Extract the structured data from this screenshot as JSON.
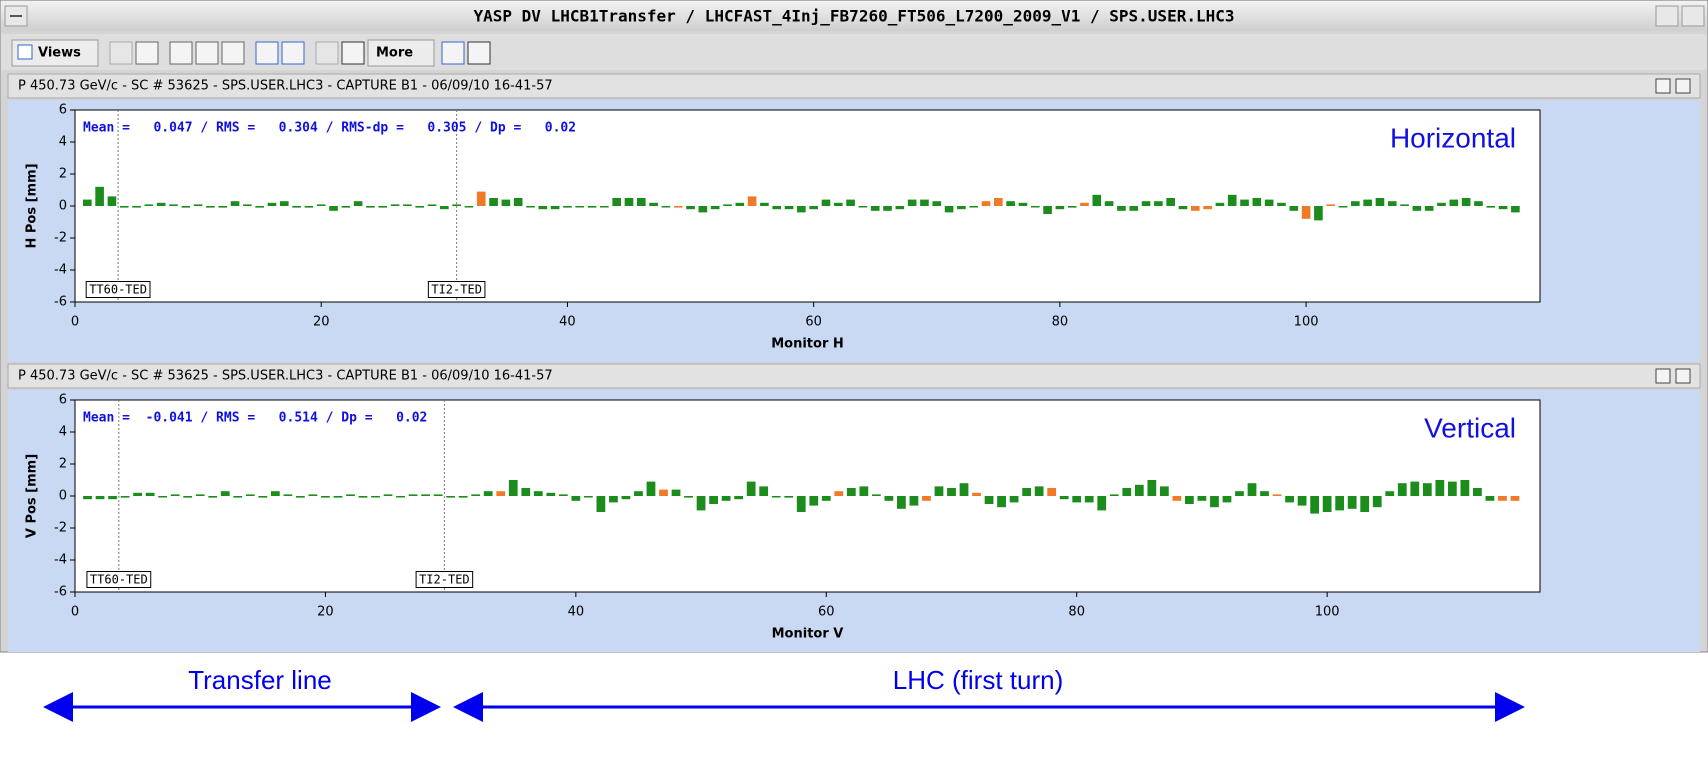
{
  "window": {
    "title": "YASP DV LHCB1Transfer / LHCFAST_4Inj_FB7260_FT506_L7200_2009_V1 / SPS.USER.LHC3"
  },
  "toolbar": {
    "views": "Views",
    "more": "More"
  },
  "chart_data": [
    {
      "type": "bar",
      "header": "P 450.73 GeV/c - SC # 53625 - SPS.USER.LHC3 - CAPTURE B1 - 06/09/10 16-41-57",
      "stats": "Mean =   0.047 / RMS =   0.304 / RMS-dp =   0.305 / Dp =   0.02",
      "plane_label": "Horizontal",
      "xlabel": "Monitor H",
      "ylabel": "H Pos [mm]",
      "xlim": [
        0,
        119
      ],
      "ylim": [
        -6,
        6
      ],
      "xticks": [
        0,
        20,
        40,
        60,
        80,
        100
      ],
      "yticks": [
        -6,
        -4,
        -2,
        0,
        2,
        4,
        6
      ],
      "markers": [
        {
          "label": "TT60-TED",
          "x": 3.5
        },
        {
          "label": "TI2-TED",
          "x": 31
        }
      ],
      "x": [
        1,
        2,
        3,
        4,
        5,
        6,
        7,
        8,
        9,
        10,
        11,
        12,
        13,
        14,
        15,
        16,
        17,
        18,
        19,
        20,
        21,
        22,
        23,
        24,
        25,
        26,
        27,
        28,
        29,
        30,
        31,
        32,
        33,
        34,
        35,
        36,
        37,
        38,
        39,
        40,
        41,
        42,
        43,
        44,
        45,
        46,
        47,
        48,
        49,
        50,
        51,
        52,
        53,
        54,
        55,
        56,
        57,
        58,
        59,
        60,
        61,
        62,
        63,
        64,
        65,
        66,
        67,
        68,
        69,
        70,
        71,
        72,
        73,
        74,
        75,
        76,
        77,
        78,
        79,
        80,
        81,
        82,
        83,
        84,
        85,
        86,
        87,
        88,
        89,
        90,
        91,
        92,
        93,
        94,
        95,
        96,
        97,
        98,
        99,
        100,
        101,
        102,
        103,
        104,
        105,
        106,
        107,
        108,
        109,
        110,
        111,
        112,
        113,
        114,
        115,
        116,
        117
      ],
      "values": [
        0.4,
        1.2,
        0.6,
        -0.1,
        -0.1,
        0.1,
        0.2,
        0.1,
        -0.1,
        0.1,
        -0.1,
        -0.1,
        0.3,
        0.1,
        -0.1,
        0.2,
        0.3,
        -0.1,
        -0.1,
        0.1,
        -0.3,
        -0.1,
        0.3,
        -0.1,
        -0.1,
        0.1,
        0.1,
        -0.1,
        0.1,
        -0.2,
        0.1,
        0.0,
        0.9,
        0.5,
        0.4,
        0.5,
        0.0,
        -0.2,
        -0.2,
        -0.1,
        0.0,
        -0.1,
        0.0,
        0.5,
        0.5,
        0.5,
        0.2,
        0.0,
        -0.1,
        -0.2,
        -0.4,
        -0.2,
        0.1,
        0.2,
        0.6,
        0.2,
        -0.2,
        -0.2,
        -0.4,
        -0.2,
        0.4,
        0.2,
        0.4,
        0.0,
        -0.3,
        -0.3,
        -0.2,
        0.4,
        0.4,
        0.3,
        -0.4,
        -0.2,
        0.0,
        0.3,
        0.5,
        0.3,
        0.2,
        0.0,
        -0.5,
        -0.2,
        -0.1,
        0.2,
        0.7,
        0.3,
        -0.3,
        -0.3,
        0.3,
        0.3,
        0.5,
        -0.2,
        -0.3,
        -0.2,
        0.2,
        0.7,
        0.4,
        0.5,
        0.4,
        0.2,
        -0.3,
        -0.8,
        -0.9,
        0.1,
        0.0,
        0.3,
        0.4,
        0.5,
        0.3,
        0.1,
        -0.3,
        -0.3,
        0.2,
        0.4,
        0.5,
        0.3,
        -0.1,
        -0.2,
        -0.4
      ],
      "colors": [
        "#1c8c1c",
        "#1c8c1c",
        "#1c8c1c",
        "#1c8c1c",
        "#1c8c1c",
        "#1c8c1c",
        "#1c8c1c",
        "#1c8c1c",
        "#1c8c1c",
        "#1c8c1c",
        "#1c8c1c",
        "#1c8c1c",
        "#1c8c1c",
        "#1c8c1c",
        "#1c8c1c",
        "#1c8c1c",
        "#1c8c1c",
        "#1c8c1c",
        "#1c8c1c",
        "#1c8c1c",
        "#1c8c1c",
        "#1c8c1c",
        "#1c8c1c",
        "#1c8c1c",
        "#1c8c1c",
        "#1c8c1c",
        "#1c8c1c",
        "#1c8c1c",
        "#1c8c1c",
        "#1c8c1c",
        "#1c8c1c",
        "#1c8c1c",
        "#f07a28",
        "#1c8c1c",
        "#1c8c1c",
        "#1c8c1c",
        "#1c8c1c",
        "#1c8c1c",
        "#1c8c1c",
        "#1c8c1c",
        "#1c8c1c",
        "#1c8c1c",
        "#1c8c1c",
        "#1c8c1c",
        "#1c8c1c",
        "#1c8c1c",
        "#1c8c1c",
        "#1c8c1c",
        "#f07a28",
        "#1c8c1c",
        "#1c8c1c",
        "#1c8c1c",
        "#1c8c1c",
        "#1c8c1c",
        "#f07a28",
        "#1c8c1c",
        "#1c8c1c",
        "#1c8c1c",
        "#1c8c1c",
        "#1c8c1c",
        "#1c8c1c",
        "#1c8c1c",
        "#1c8c1c",
        "#1c8c1c",
        "#1c8c1c",
        "#1c8c1c",
        "#1c8c1c",
        "#1c8c1c",
        "#1c8c1c",
        "#1c8c1c",
        "#1c8c1c",
        "#1c8c1c",
        "#1c8c1c",
        "#f07a28",
        "#f07a28",
        "#1c8c1c",
        "#1c8c1c",
        "#1c8c1c",
        "#1c8c1c",
        "#1c8c1c",
        "#1c8c1c",
        "#f07a28",
        "#1c8c1c",
        "#1c8c1c",
        "#1c8c1c",
        "#1c8c1c",
        "#1c8c1c",
        "#1c8c1c",
        "#1c8c1c",
        "#1c8c1c",
        "#f07a28",
        "#f07a28",
        "#1c8c1c",
        "#1c8c1c",
        "#1c8c1c",
        "#1c8c1c",
        "#1c8c1c",
        "#1c8c1c",
        "#1c8c1c",
        "#f07a28",
        "#1c8c1c",
        "#f07a28",
        "#1c8c1c",
        "#1c8c1c",
        "#1c8c1c",
        "#1c8c1c",
        "#1c8c1c",
        "#1c8c1c",
        "#1c8c1c",
        "#1c8c1c",
        "#1c8c1c",
        "#1c8c1c",
        "#1c8c1c",
        "#1c8c1c",
        "#1c8c1c",
        "#1c8c1c",
        "#1c8c1c"
      ]
    },
    {
      "type": "bar",
      "header": "P 450.73 GeV/c - SC # 53625 - SPS.USER.LHC3 - CAPTURE B1 - 06/09/10 16-41-57",
      "stats": "Mean =  -0.041 / RMS =   0.514 / Dp =   0.02",
      "plane_label": "Vertical",
      "xlabel": "Monitor V",
      "ylabel": "V Pos [mm]",
      "xlim": [
        0,
        117
      ],
      "ylim": [
        -6,
        6
      ],
      "xticks": [
        0,
        20,
        40,
        60,
        80,
        100
      ],
      "yticks": [
        -6,
        -4,
        -2,
        0,
        2,
        4,
        6
      ],
      "markers": [
        {
          "label": "TT60-TED",
          "x": 3.5
        },
        {
          "label": "TI2-TED",
          "x": 29.5
        }
      ],
      "x": [
        1,
        2,
        3,
        4,
        5,
        6,
        7,
        8,
        9,
        10,
        11,
        12,
        13,
        14,
        15,
        16,
        17,
        18,
        19,
        20,
        21,
        22,
        23,
        24,
        25,
        26,
        27,
        28,
        29,
        30,
        31,
        32,
        33,
        34,
        35,
        36,
        37,
        38,
        39,
        40,
        41,
        42,
        43,
        44,
        45,
        46,
        47,
        48,
        49,
        50,
        51,
        52,
        53,
        54,
        55,
        56,
        57,
        58,
        59,
        60,
        61,
        62,
        63,
        64,
        65,
        66,
        67,
        68,
        69,
        70,
        71,
        72,
        73,
        74,
        75,
        76,
        77,
        78,
        79,
        80,
        81,
        82,
        83,
        84,
        85,
        86,
        87,
        88,
        89,
        90,
        91,
        92,
        93,
        94,
        95,
        96,
        97,
        98,
        99,
        100,
        101,
        102,
        103,
        104,
        105,
        106,
        107,
        108,
        109,
        110,
        111,
        112,
        113,
        114,
        115
      ],
      "values": [
        -0.2,
        -0.2,
        -0.2,
        -0.1,
        0.2,
        0.2,
        0.0,
        0.1,
        -0.1,
        0.1,
        -0.1,
        0.3,
        -0.1,
        0.1,
        -0.1,
        0.3,
        0.1,
        -0.1,
        0.1,
        -0.1,
        -0.1,
        0.1,
        -0.1,
        0.0,
        0.1,
        0.0,
        0.1,
        0.1,
        0.1,
        -0.1,
        -0.1,
        0.1,
        0.3,
        0.3,
        1.0,
        0.5,
        0.3,
        0.2,
        0.1,
        -0.3,
        0.0,
        -1.0,
        -0.4,
        -0.2,
        0.3,
        0.9,
        0.4,
        0.4,
        -0.1,
        -0.9,
        -0.5,
        -0.3,
        -0.2,
        0.9,
        0.6,
        0.0,
        -0.1,
        -1.0,
        -0.6,
        -0.3,
        0.3,
        0.5,
        0.6,
        0.1,
        -0.3,
        -0.8,
        -0.6,
        -0.3,
        0.6,
        0.5,
        0.8,
        0.2,
        -0.5,
        -0.7,
        -0.4,
        0.5,
        0.6,
        0.5,
        -0.2,
        -0.4,
        -0.4,
        -0.9,
        0.1,
        0.5,
        0.7,
        1.0,
        0.6,
        -0.3,
        -0.5,
        -0.3,
        -0.7,
        -0.4,
        0.3,
        0.8,
        0.3,
        0.1,
        -0.4,
        -0.6,
        -1.1,
        -1.0,
        -0.9,
        -0.8,
        -1.0,
        -0.7,
        0.3,
        0.8,
        0.9,
        0.8,
        1.0,
        0.9,
        1.0,
        0.5,
        -0.3,
        -0.3,
        -0.3
      ],
      "colors": [
        "#1c8c1c",
        "#1c8c1c",
        "#1c8c1c",
        "#1c8c1c",
        "#1c8c1c",
        "#1c8c1c",
        "#1c8c1c",
        "#1c8c1c",
        "#1c8c1c",
        "#1c8c1c",
        "#1c8c1c",
        "#1c8c1c",
        "#1c8c1c",
        "#1c8c1c",
        "#1c8c1c",
        "#1c8c1c",
        "#1c8c1c",
        "#1c8c1c",
        "#1c8c1c",
        "#1c8c1c",
        "#1c8c1c",
        "#1c8c1c",
        "#1c8c1c",
        "#1c8c1c",
        "#1c8c1c",
        "#1c8c1c",
        "#1c8c1c",
        "#1c8c1c",
        "#1c8c1c",
        "#1c8c1c",
        "#1c8c1c",
        "#1c8c1c",
        "#1c8c1c",
        "#f07a28",
        "#1c8c1c",
        "#1c8c1c",
        "#1c8c1c",
        "#1c8c1c",
        "#1c8c1c",
        "#1c8c1c",
        "#1c8c1c",
        "#1c8c1c",
        "#1c8c1c",
        "#1c8c1c",
        "#1c8c1c",
        "#1c8c1c",
        "#f07a28",
        "#1c8c1c",
        "#1c8c1c",
        "#1c8c1c",
        "#1c8c1c",
        "#1c8c1c",
        "#1c8c1c",
        "#1c8c1c",
        "#1c8c1c",
        "#1c8c1c",
        "#1c8c1c",
        "#1c8c1c",
        "#1c8c1c",
        "#1c8c1c",
        "#f07a28",
        "#1c8c1c",
        "#1c8c1c",
        "#1c8c1c",
        "#1c8c1c",
        "#1c8c1c",
        "#1c8c1c",
        "#f07a28",
        "#1c8c1c",
        "#1c8c1c",
        "#1c8c1c",
        "#f07a28",
        "#1c8c1c",
        "#1c8c1c",
        "#1c8c1c",
        "#1c8c1c",
        "#1c8c1c",
        "#f07a28",
        "#1c8c1c",
        "#1c8c1c",
        "#1c8c1c",
        "#1c8c1c",
        "#1c8c1c",
        "#1c8c1c",
        "#1c8c1c",
        "#1c8c1c",
        "#1c8c1c",
        "#f07a28",
        "#1c8c1c",
        "#1c8c1c",
        "#1c8c1c",
        "#1c8c1c",
        "#1c8c1c",
        "#1c8c1c",
        "#1c8c1c",
        "#f07a28",
        "#1c8c1c",
        "#1c8c1c",
        "#1c8c1c",
        "#1c8c1c",
        "#1c8c1c",
        "#1c8c1c",
        "#1c8c1c",
        "#1c8c1c",
        "#1c8c1c",
        "#1c8c1c",
        "#1c8c1c",
        "#1c8c1c",
        "#1c8c1c",
        "#1c8c1c",
        "#1c8c1c",
        "#1c8c1c",
        "#1c8c1c",
        "#f07a28",
        "#f07a28"
      ]
    }
  ],
  "annotations": {
    "transfer_line": "Transfer line",
    "lhc": "LHC (first turn)"
  }
}
